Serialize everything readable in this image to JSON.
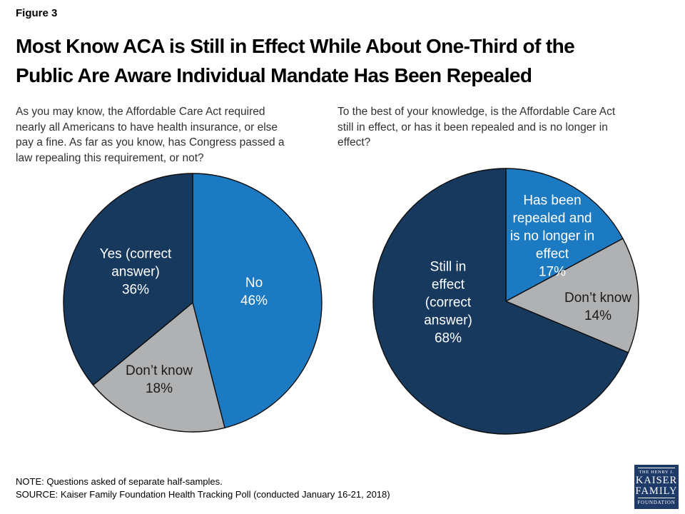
{
  "figure_label": "Figure 3",
  "title": "Most Know ACA is Still in Effect While About One-Third of the\nPublic Are Aware Individual Mandate Has Been Repealed",
  "questions": {
    "left": "As you may know, the Affordable Care Act required\nnearly all Americans to have health insurance, or else\npay a fine. As far as you know, has Congress passed a\nlaw repealing this requirement, or not?",
    "right": "To the best of your knowledge, is the Affordable Care Act\nstill in effect, or has it been repealed and is no longer in\neffect?"
  },
  "chart_data": [
    {
      "type": "pie",
      "question": "As you may know, the Affordable Care Act required nearly all Americans to have health insurance, or else pay a fine. As far as you know, has Congress passed a law repealing this requirement, or not?",
      "start_angle_deg": 0,
      "direction": "clockwise",
      "labels_inside": true,
      "slices": [
        {
          "id": "no",
          "label": "No",
          "value": 46,
          "color": "#1B7AC2",
          "text_color": "#FFFFFF",
          "display": "No\n46%"
        },
        {
          "id": "dont-know",
          "label": "Don’t know",
          "value": 18,
          "color": "#B0B1B3",
          "text_color": "#1A1A1A",
          "display": "Don’t know\n18%"
        },
        {
          "id": "yes-correct",
          "label": "Yes (correct answer)",
          "value": 36,
          "color": "#17395E",
          "text_color": "#FFFFFF",
          "display": "Yes (correct\nanswer)\n36%"
        }
      ]
    },
    {
      "type": "pie",
      "question": "To the best of your knowledge, is the Affordable Care Act still in effect, or has it been repealed and is no longer in effect?",
      "start_angle_deg": 0,
      "direction": "clockwise",
      "labels_inside": true,
      "slices": [
        {
          "id": "repealed",
          "label": "Has been repealed and is no longer in effect",
          "value": 17,
          "color": "#1B7AC2",
          "text_color": "#FFFFFF",
          "display": "Has been\nrepealed and\nis no longer in\neffect\n17%"
        },
        {
          "id": "dont-know",
          "label": "Don’t know",
          "value": 14,
          "color": "#B0B1B3",
          "text_color": "#1A1A1A",
          "display": "Don’t know\n14%"
        },
        {
          "id": "still-in-effect",
          "label": "Still in effect (correct answer)",
          "value": 68,
          "color": "#17395E",
          "text_color": "#FFFFFF",
          "display": "Still in\neffect\n(correct\nanswer)\n68%"
        }
      ]
    }
  ],
  "note": "NOTE: Questions asked of separate half-samples.",
  "source": "SOURCE: Kaiser Family Foundation Health Tracking Poll (conducted January 16-21, 2018)",
  "logo": {
    "line1": "THE HENRY J.",
    "line2": "KAISER",
    "line3": "FAMILY",
    "line4": "FOUNDATION"
  },
  "colors": {
    "slice_blue": "#1B7AC2",
    "slice_navy": "#17395E",
    "slice_gray": "#B0B1B3",
    "slice_outline": "#0D0D0D",
    "logo_navy": "#1E3A68",
    "background": "#FFFFFF"
  }
}
